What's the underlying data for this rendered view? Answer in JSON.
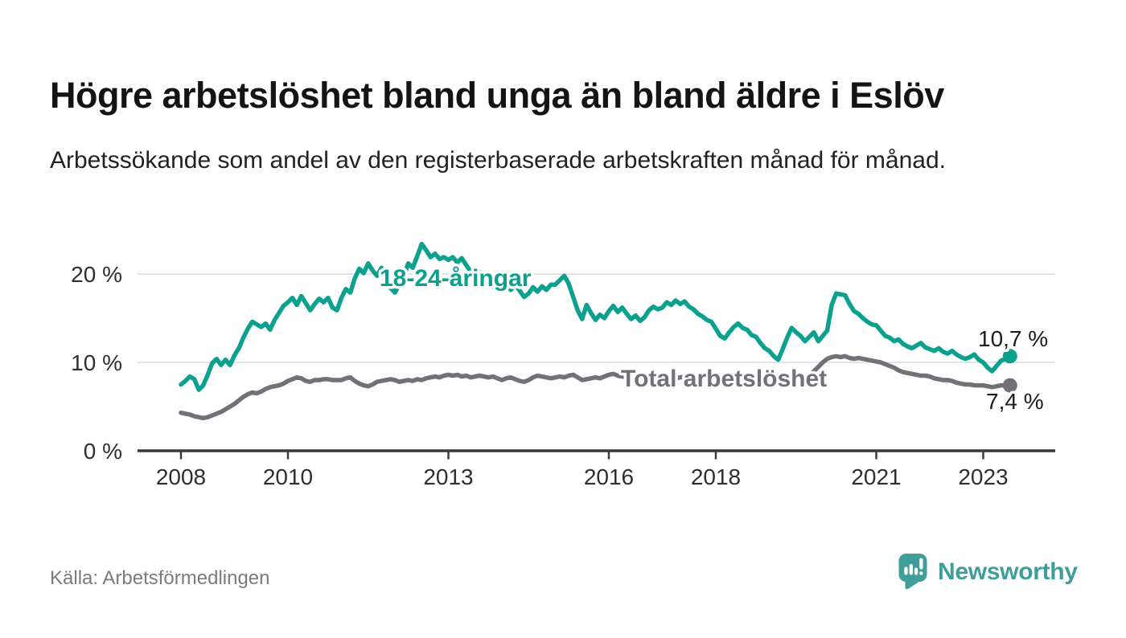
{
  "header": {
    "title": "Högre arbetslöshet bland unga än bland äldre i Eslöv",
    "subtitle": "Arbetssökande som andel av den registerbaserade arbetskraften månad för månad."
  },
  "source": {
    "label": "Källa: Arbetsförmedlingen"
  },
  "branding": {
    "name": "Newsworthy",
    "icon": "newsworthy-speech-bubble-bar-chart-icon",
    "color": "#3f9e99"
  },
  "colors": {
    "young_line": "#0ca08f",
    "total_line": "#717177",
    "grid": "#dbdbdb",
    "axis": "#3a3a3a",
    "axis_label": "#2f2f2f",
    "value_label": "#1c1c1c",
    "title_text": "#141414",
    "source_text": "#7b7b7b"
  },
  "chart_data": {
    "type": "line",
    "frequency": "monthly",
    "x_start_year": 2008,
    "x_end_year": 2023.5,
    "ylim": [
      0,
      24
    ],
    "grid": "horizontal-only",
    "x_ticks": [
      "2008",
      "2010",
      "2013",
      "2016",
      "2018",
      "2021",
      "2023"
    ],
    "y_ticks": [
      {
        "value": 0,
        "label": "0 %"
      },
      {
        "value": 10,
        "label": "10 %"
      },
      {
        "value": 20,
        "label": "20 %"
      }
    ],
    "series": [
      {
        "name": "18-24-åringar",
        "color": "#0ca08f",
        "end_label": "10,7 %",
        "end_value": 10.7,
        "values": [
          7.5,
          7.9,
          8.4,
          8.1,
          6.9,
          7.4,
          8.6,
          9.9,
          10.4,
          9.7,
          10.3,
          9.7,
          10.8,
          11.6,
          12.8,
          13.8,
          14.6,
          14.3,
          14.0,
          14.4,
          13.7,
          14.8,
          15.6,
          16.4,
          16.8,
          17.3,
          16.5,
          17.5,
          16.7,
          15.9,
          16.6,
          17.2,
          16.8,
          17.3,
          16.2,
          15.9,
          17.3,
          18.3,
          17.9,
          19.5,
          20.6,
          20.1,
          21.2,
          20.4,
          19.8,
          20.7,
          19.4,
          18.4,
          17.9,
          18.8,
          19.7,
          21.2,
          20.7,
          22.0,
          23.4,
          22.7,
          21.9,
          22.3,
          21.7,
          21.9,
          21.6,
          21.9,
          21.3,
          21.8,
          21.0,
          20.3,
          19.6,
          20.2,
          19.5,
          18.9,
          18.5,
          19.0,
          18.4,
          18.9,
          18.2,
          18.8,
          18.1,
          17.4,
          17.8,
          18.5,
          18.0,
          18.6,
          18.2,
          18.8,
          18.8,
          19.3,
          19.8,
          18.9,
          17.4,
          15.9,
          14.9,
          16.5,
          15.6,
          14.8,
          15.4,
          15.0,
          15.8,
          16.4,
          15.7,
          16.2,
          15.5,
          14.9,
          15.3,
          14.7,
          15.1,
          15.9,
          16.3,
          16.0,
          16.2,
          16.8,
          16.5,
          17.0,
          16.6,
          16.9,
          16.3,
          16.0,
          15.5,
          15.2,
          14.8,
          14.6,
          13.8,
          13.0,
          12.7,
          13.4,
          14.0,
          14.4,
          13.9,
          13.7,
          13.1,
          12.9,
          12.2,
          11.6,
          11.3,
          10.7,
          10.3,
          11.5,
          12.8,
          13.9,
          13.4,
          13.0,
          12.4,
          12.9,
          13.4,
          12.4,
          13.0,
          13.6,
          16.5,
          17.8,
          17.7,
          17.6,
          16.6,
          15.8,
          15.5,
          15.0,
          14.6,
          14.3,
          14.2,
          13.6,
          13.0,
          12.8,
          12.4,
          12.6,
          12.1,
          11.8,
          11.6,
          11.9,
          12.2,
          11.7,
          11.5,
          11.3,
          11.6,
          11.2,
          11.0,
          11.3,
          10.9,
          10.6,
          10.4,
          10.6,
          10.9,
          10.3,
          10.0,
          9.4,
          9.0,
          9.6,
          10.2,
          10.4,
          10.7
        ]
      },
      {
        "name": "Total arbetslöshet",
        "color": "#717177",
        "end_label": "7,4 %",
        "end_value": 7.4,
        "values": [
          4.3,
          4.2,
          4.1,
          3.9,
          3.8,
          3.7,
          3.8,
          4.0,
          4.2,
          4.4,
          4.7,
          5.0,
          5.3,
          5.7,
          6.1,
          6.4,
          6.6,
          6.5,
          6.7,
          7.0,
          7.2,
          7.3,
          7.4,
          7.6,
          7.9,
          8.1,
          8.3,
          8.2,
          7.9,
          7.8,
          8.0,
          8.0,
          8.1,
          8.1,
          8.0,
          8.0,
          8.0,
          8.2,
          8.3,
          7.9,
          7.6,
          7.4,
          7.3,
          7.5,
          7.8,
          7.9,
          8.0,
          8.1,
          8.0,
          7.8,
          7.9,
          8.0,
          7.9,
          8.1,
          8.0,
          8.2,
          8.3,
          8.4,
          8.3,
          8.5,
          8.6,
          8.5,
          8.6,
          8.4,
          8.5,
          8.3,
          8.4,
          8.5,
          8.4,
          8.3,
          8.4,
          8.2,
          8.0,
          8.2,
          8.3,
          8.1,
          7.9,
          7.8,
          8.0,
          8.3,
          8.5,
          8.4,
          8.3,
          8.2,
          8.3,
          8.4,
          8.3,
          8.5,
          8.6,
          8.3,
          8.0,
          8.1,
          8.2,
          8.3,
          8.2,
          8.4,
          8.6,
          8.7,
          8.5,
          8.4,
          8.3,
          8.2,
          8.3,
          8.4,
          8.3,
          8.4,
          8.3,
          8.2,
          8.3,
          8.4,
          8.3,
          8.2,
          8.3,
          8.4,
          8.3,
          8.2,
          8.1,
          8.2,
          8.3,
          8.2,
          8.1,
          8.0,
          8.1,
          8.0,
          7.9,
          8.0,
          7.9,
          7.8,
          7.9,
          7.8,
          7.9,
          7.8,
          7.7,
          7.8,
          7.7,
          7.8,
          7.9,
          7.8,
          7.9,
          8.0,
          8.2,
          8.5,
          9.0,
          9.5,
          10.0,
          10.4,
          10.6,
          10.7,
          10.6,
          10.7,
          10.5,
          10.4,
          10.5,
          10.4,
          10.3,
          10.2,
          10.1,
          10.0,
          9.8,
          9.6,
          9.4,
          9.1,
          8.9,
          8.8,
          8.7,
          8.6,
          8.5,
          8.5,
          8.4,
          8.2,
          8.1,
          8.0,
          8.0,
          7.9,
          7.7,
          7.6,
          7.5,
          7.5,
          7.4,
          7.4,
          7.4,
          7.3,
          7.2,
          7.3,
          7.4,
          7.4,
          7.4
        ]
      }
    ]
  }
}
